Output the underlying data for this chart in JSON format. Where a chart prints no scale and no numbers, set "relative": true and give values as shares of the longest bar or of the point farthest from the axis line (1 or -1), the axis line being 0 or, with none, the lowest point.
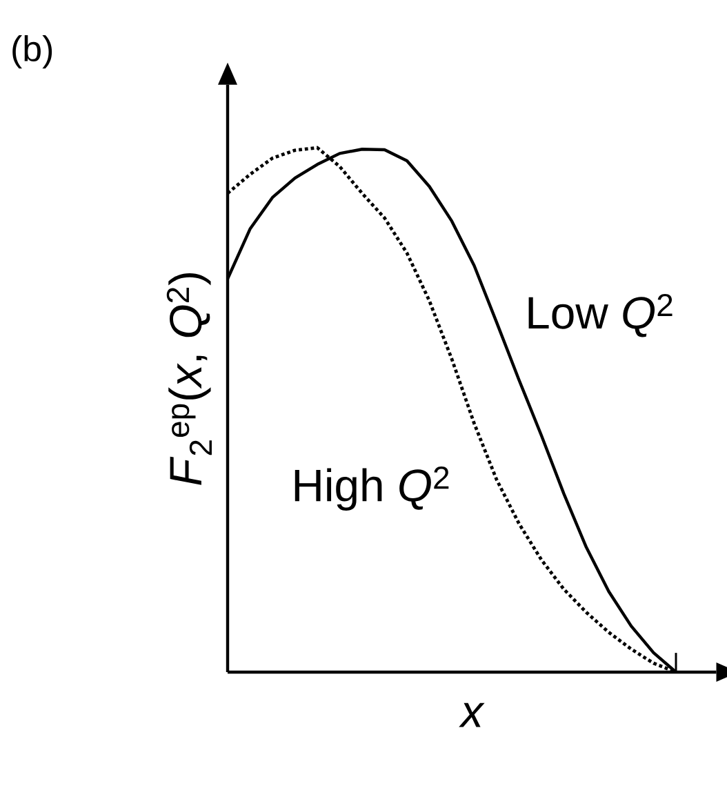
{
  "chart_data": {
    "type": "line",
    "title": "(b)",
    "xlabel": "x",
    "ylabel": "*F*$_{2}$$^{ep}$(*x*, *Q*$^{2}$)",
    "relative": true,
    "legend": false,
    "categories": [
      null,
      null,
      null,
      null,
      null,
      null,
      null,
      null,
      null,
      null,
      null,
      null,
      null,
      null,
      null,
      null,
      null,
      null,
      null,
      null,
      null
    ],
    "series": [
      {
        "name": "Low *Q*$^{2}$",
        "color": "#000000",
        "line_style": "solid",
        "values": [
          0.75,
          0.845,
          0.905,
          0.942,
          0.968,
          0.989,
          0.997,
          0.996,
          0.975,
          0.926,
          0.86,
          0.775,
          0.667,
          0.557,
          0.451,
          0.34,
          0.238,
          0.154,
          0.088,
          0.037,
          0
        ]
      },
      {
        "name": "High *Q*$^{2}$",
        "color": "#000000",
        "line_style": "dotted",
        "values": [
          0.913,
          0.949,
          0.98,
          0.995,
          1,
          0.964,
          0.913,
          0.866,
          0.799,
          0.708,
          0.597,
          0.474,
          0.367,
          0.283,
          0.214,
          0.158,
          0.114,
          0.076,
          0.044,
          0.017,
          0
        ]
      }
    ]
  }
}
